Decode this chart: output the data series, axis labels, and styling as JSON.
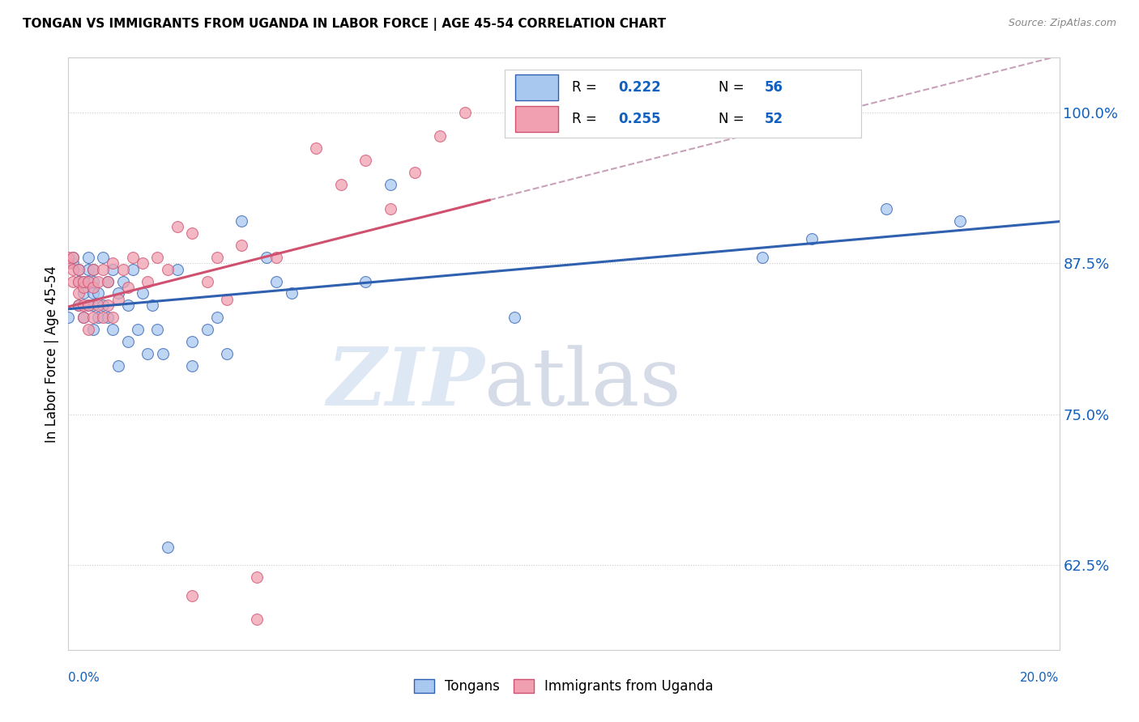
{
  "title": "TONGAN VS IMMIGRANTS FROM UGANDA IN LABOR FORCE | AGE 45-54 CORRELATION CHART",
  "source": "Source: ZipAtlas.com",
  "ylabel": "In Labor Force | Age 45-54",
  "yticks": [
    0.625,
    0.75,
    0.875,
    1.0
  ],
  "ytick_labels": [
    "62.5%",
    "75.0%",
    "87.5%",
    "100.0%"
  ],
  "xmin": 0.0,
  "xmax": 0.2,
  "ymin": 0.555,
  "ymax": 1.045,
  "color_blue": "#A8C8F0",
  "color_pink": "#F0A0B0",
  "color_trendline_blue": "#3060B0",
  "color_trendline_pink": "#D05070",
  "color_dashed": "#C8A0B8",
  "color_axis_label": "#1060C0",
  "tongans_x": [
    0.0,
    0.001,
    0.001,
    0.002,
    0.002,
    0.002,
    0.003,
    0.003,
    0.003,
    0.004,
    0.004,
    0.004,
    0.004,
    0.005,
    0.005,
    0.005,
    0.005,
    0.005,
    0.006,
    0.006,
    0.007,
    0.007,
    0.008,
    0.008,
    0.009,
    0.009,
    0.01,
    0.01,
    0.011,
    0.012,
    0.012,
    0.013,
    0.014,
    0.015,
    0.016,
    0.017,
    0.018,
    0.019,
    0.02,
    0.022,
    0.025,
    0.025,
    0.028,
    0.03,
    0.032,
    0.035,
    0.04,
    0.042,
    0.045,
    0.06,
    0.065,
    0.09,
    0.14,
    0.15,
    0.165,
    0.18
  ],
  "tongans_y": [
    0.83,
    0.875,
    0.88,
    0.84,
    0.86,
    0.87,
    0.83,
    0.85,
    0.86,
    0.84,
    0.86,
    0.87,
    0.88,
    0.82,
    0.84,
    0.85,
    0.86,
    0.87,
    0.83,
    0.85,
    0.84,
    0.88,
    0.83,
    0.86,
    0.82,
    0.87,
    0.79,
    0.85,
    0.86,
    0.81,
    0.84,
    0.87,
    0.82,
    0.85,
    0.8,
    0.84,
    0.82,
    0.8,
    0.64,
    0.87,
    0.79,
    0.81,
    0.82,
    0.83,
    0.8,
    0.91,
    0.88,
    0.86,
    0.85,
    0.86,
    0.94,
    0.83,
    0.88,
    0.895,
    0.92,
    0.91
  ],
  "uganda_x": [
    0.0,
    0.0,
    0.001,
    0.001,
    0.001,
    0.002,
    0.002,
    0.002,
    0.002,
    0.003,
    0.003,
    0.003,
    0.003,
    0.004,
    0.004,
    0.004,
    0.005,
    0.005,
    0.005,
    0.006,
    0.006,
    0.007,
    0.007,
    0.008,
    0.008,
    0.009,
    0.009,
    0.01,
    0.011,
    0.012,
    0.013,
    0.015,
    0.016,
    0.018,
    0.02,
    0.022,
    0.025,
    0.028,
    0.03,
    0.032,
    0.035,
    0.038,
    0.042,
    0.05,
    0.055,
    0.06,
    0.065,
    0.07,
    0.075,
    0.08,
    0.038,
    0.025
  ],
  "uganda_y": [
    0.875,
    0.88,
    0.86,
    0.87,
    0.88,
    0.84,
    0.85,
    0.86,
    0.87,
    0.83,
    0.84,
    0.855,
    0.86,
    0.82,
    0.84,
    0.86,
    0.83,
    0.855,
    0.87,
    0.84,
    0.86,
    0.83,
    0.87,
    0.84,
    0.86,
    0.83,
    0.875,
    0.845,
    0.87,
    0.855,
    0.88,
    0.875,
    0.86,
    0.88,
    0.87,
    0.905,
    0.9,
    0.86,
    0.88,
    0.845,
    0.89,
    0.615,
    0.88,
    0.97,
    0.94,
    0.96,
    0.92,
    0.95,
    0.98,
    1.0,
    0.58,
    0.6
  ]
}
